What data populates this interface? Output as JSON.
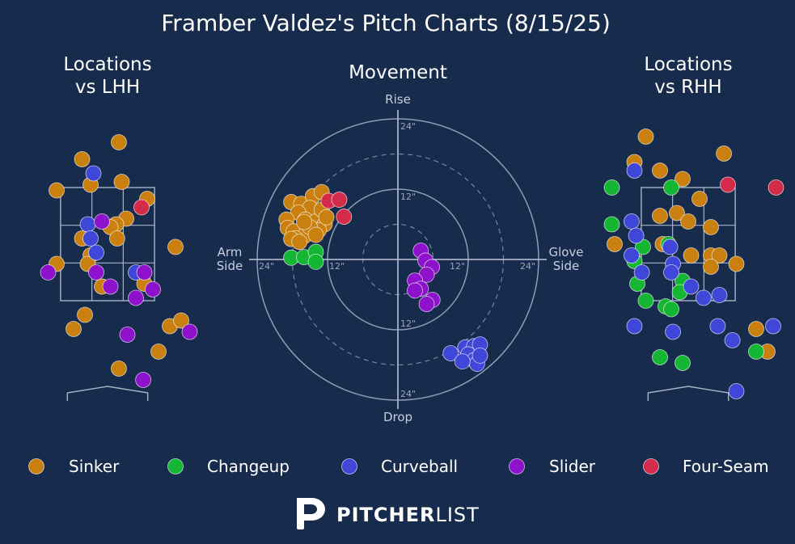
{
  "title": "Framber Valdez's Pitch Charts (8/15/25)",
  "panels": {
    "lhh_title": [
      "Locations",
      "vs LHH"
    ],
    "movement_title": "Movement",
    "rhh_title": [
      "Locations",
      "vs RHH"
    ]
  },
  "movement_axis_labels": {
    "top": "Rise",
    "bottom": "Drop",
    "left": [
      "Arm",
      "Side"
    ],
    "right": [
      "Glove",
      "Side"
    ]
  },
  "ring_labels": {
    "r12": "12\"",
    "r24": "24\""
  },
  "colors": {
    "background": "#172b4d",
    "Sinker": "#c9800f",
    "Changeup": "#14b634",
    "Curveball": "#3f47d8",
    "Slider": "#8e11cc",
    "Four-Seam": "#d42b4b"
  },
  "legend": [
    "Sinker",
    "Changeup",
    "Curveball",
    "Slider",
    "Four-Seam"
  ],
  "brand": {
    "bold": "PITCHER",
    "light": "LIST",
    "logo_icon": "pitcherlist-p-icon"
  },
  "chart_data": [
    {
      "type": "scatter",
      "name": "Locations vs LHH",
      "units": "feet (catcher view)",
      "xlim": [
        -2.5,
        2.5
      ],
      "ylim": [
        0,
        5
      ],
      "strike_zone": {
        "x": [
          -0.83,
          0.83
        ],
        "z": [
          1.5,
          3.5
        ]
      },
      "points": [
        {
          "pitch": "Sinker",
          "x": 0.2,
          "z": 4.3
        },
        {
          "pitch": "Sinker",
          "x": -0.45,
          "z": 4.0
        },
        {
          "pitch": "Sinker",
          "x": 0.25,
          "z": 3.6
        },
        {
          "pitch": "Sinker",
          "x": -0.3,
          "z": 3.55
        },
        {
          "pitch": "Sinker",
          "x": -0.9,
          "z": 3.45
        },
        {
          "pitch": "Sinker",
          "x": 0.7,
          "z": 3.3
        },
        {
          "pitch": "Sinker",
          "x": 0.33,
          "z": 2.95
        },
        {
          "pitch": "Sinker",
          "x": 0.15,
          "z": 2.85
        },
        {
          "pitch": "Sinker",
          "x": 0.05,
          "z": 2.8
        },
        {
          "pitch": "Sinker",
          "x": -0.45,
          "z": 2.6
        },
        {
          "pitch": "Sinker",
          "x": 0.17,
          "z": 2.6
        },
        {
          "pitch": "Sinker",
          "x": -0.3,
          "z": 2.3
        },
        {
          "pitch": "Sinker",
          "x": -0.9,
          "z": 2.15
        },
        {
          "pitch": "Sinker",
          "x": -0.35,
          "z": 2.15
        },
        {
          "pitch": "Sinker",
          "x": 1.2,
          "z": 2.45
        },
        {
          "pitch": "Sinker",
          "x": -0.1,
          "z": 1.75
        },
        {
          "pitch": "Sinker",
          "x": 0.65,
          "z": 1.8
        },
        {
          "pitch": "Sinker",
          "x": -0.4,
          "z": 1.25
        },
        {
          "pitch": "Sinker",
          "x": -0.6,
          "z": 1.0
        },
        {
          "pitch": "Sinker",
          "x": 1.1,
          "z": 1.05
        },
        {
          "pitch": "Sinker",
          "x": 1.3,
          "z": 1.15
        },
        {
          "pitch": "Sinker",
          "x": 0.9,
          "z": 0.6
        },
        {
          "pitch": "Sinker",
          "x": 0.2,
          "z": 0.3
        },
        {
          "pitch": "Curveball",
          "x": -0.25,
          "z": 3.75
        },
        {
          "pitch": "Curveball",
          "x": -0.35,
          "z": 2.85
        },
        {
          "pitch": "Curveball",
          "x": -0.3,
          "z": 2.6
        },
        {
          "pitch": "Curveball",
          "x": -0.2,
          "z": 2.35
        },
        {
          "pitch": "Curveball",
          "x": 0.5,
          "z": 2.0
        },
        {
          "pitch": "Slider",
          "x": -0.1,
          "z": 2.9
        },
        {
          "pitch": "Slider",
          "x": 0.65,
          "z": 2.0
        },
        {
          "pitch": "Slider",
          "x": -0.2,
          "z": 2.0
        },
        {
          "pitch": "Slider",
          "x": -1.05,
          "z": 2.0
        },
        {
          "pitch": "Slider",
          "x": 0.8,
          "z": 1.7
        },
        {
          "pitch": "Slider",
          "x": 0.05,
          "z": 1.75
        },
        {
          "pitch": "Slider",
          "x": 0.5,
          "z": 1.55
        },
        {
          "pitch": "Slider",
          "x": 0.35,
          "z": 0.9
        },
        {
          "pitch": "Slider",
          "x": 1.45,
          "z": 0.95
        },
        {
          "pitch": "Slider",
          "x": 0.63,
          "z": 0.1
        },
        {
          "pitch": "Four-Seam",
          "x": 0.6,
          "z": 3.15
        }
      ]
    },
    {
      "type": "scatter",
      "name": "Movement",
      "units": "inches",
      "axes": [
        "Arm Side / Glove Side",
        "Rise / Drop"
      ],
      "rings": [
        6,
        12,
        18,
        24
      ],
      "xlim": [
        -24,
        24
      ],
      "ylim": [
        -24,
        24
      ],
      "points": [
        {
          "pitch": "Sinker",
          "x": -18.2,
          "y": 9.8
        },
        {
          "pitch": "Sinker",
          "x": -16.5,
          "y": 9.5
        },
        {
          "pitch": "Sinker",
          "x": -14.5,
          "y": 10.8
        },
        {
          "pitch": "Sinker",
          "x": -13.0,
          "y": 11.5
        },
        {
          "pitch": "Sinker",
          "x": -15.0,
          "y": 8.8
        },
        {
          "pitch": "Sinker",
          "x": -17.0,
          "y": 8.0
        },
        {
          "pitch": "Sinker",
          "x": -19.0,
          "y": 6.8
        },
        {
          "pitch": "Sinker",
          "x": -18.8,
          "y": 5.4
        },
        {
          "pitch": "Sinker",
          "x": -17.8,
          "y": 4.8
        },
        {
          "pitch": "Sinker",
          "x": -15.8,
          "y": 6.8
        },
        {
          "pitch": "Sinker",
          "x": -14.0,
          "y": 6.5
        },
        {
          "pitch": "Sinker",
          "x": -13.0,
          "y": 8.5
        },
        {
          "pitch": "Sinker",
          "x": -12.5,
          "y": 6.0
        },
        {
          "pitch": "Sinker",
          "x": -13.5,
          "y": 5.0
        },
        {
          "pitch": "Sinker",
          "x": -16.0,
          "y": 4.0
        },
        {
          "pitch": "Sinker",
          "x": -17.5,
          "y": 3.6
        },
        {
          "pitch": "Sinker",
          "x": -18.2,
          "y": 3.5
        },
        {
          "pitch": "Sinker",
          "x": -16.8,
          "y": 3.0
        },
        {
          "pitch": "Sinker",
          "x": -15.0,
          "y": 5.5
        },
        {
          "pitch": "Sinker",
          "x": -16.0,
          "y": 6.4
        },
        {
          "pitch": "Sinker",
          "x": -12.2,
          "y": 7.2
        },
        {
          "pitch": "Sinker",
          "x": -14.0,
          "y": 4.2
        },
        {
          "pitch": "Changeup",
          "x": -18.2,
          "y": 0.3
        },
        {
          "pitch": "Changeup",
          "x": -16.0,
          "y": 0.4
        },
        {
          "pitch": "Changeup",
          "x": -14.0,
          "y": 1.3
        },
        {
          "pitch": "Changeup",
          "x": -14.0,
          "y": -0.4
        },
        {
          "pitch": "Curveball",
          "x": 9.0,
          "y": -16.0
        },
        {
          "pitch": "Curveball",
          "x": 11.5,
          "y": -15.0
        },
        {
          "pitch": "Curveball",
          "x": 13.0,
          "y": -14.8
        },
        {
          "pitch": "Curveball",
          "x": 14.0,
          "y": -14.5
        },
        {
          "pitch": "Curveball",
          "x": 12.0,
          "y": -16.2
        },
        {
          "pitch": "Curveball",
          "x": 13.0,
          "y": -17.2
        },
        {
          "pitch": "Curveball",
          "x": 13.5,
          "y": -17.8
        },
        {
          "pitch": "Curveball",
          "x": 11.0,
          "y": -17.4
        },
        {
          "pitch": "Curveball",
          "x": 14.0,
          "y": -16.4
        },
        {
          "pitch": "Slider",
          "x": 3.9,
          "y": 1.5
        },
        {
          "pitch": "Slider",
          "x": 4.7,
          "y": -0.2
        },
        {
          "pitch": "Slider",
          "x": 5.8,
          "y": -1.3
        },
        {
          "pitch": "Slider",
          "x": 4.9,
          "y": -2.6
        },
        {
          "pitch": "Slider",
          "x": 2.9,
          "y": -3.6
        },
        {
          "pitch": "Slider",
          "x": 3.9,
          "y": -5.0
        },
        {
          "pitch": "Slider",
          "x": 2.9,
          "y": -5.3
        },
        {
          "pitch": "Slider",
          "x": 5.9,
          "y": -6.9
        },
        {
          "pitch": "Slider",
          "x": 4.9,
          "y": -7.6
        },
        {
          "pitch": "Four-Seam",
          "x": -11.8,
          "y": 10.0
        },
        {
          "pitch": "Four-Seam",
          "x": -10.0,
          "y": 10.2
        },
        {
          "pitch": "Four-Seam",
          "x": -9.2,
          "y": 7.3
        }
      ]
    },
    {
      "type": "scatter",
      "name": "Locations vs RHH",
      "units": "feet (catcher view)",
      "xlim": [
        -2.5,
        2.5
      ],
      "ylim": [
        0,
        5
      ],
      "strike_zone": {
        "x": [
          -0.83,
          0.83
        ],
        "z": [
          1.5,
          3.5
        ]
      },
      "points": [
        {
          "pitch": "Sinker",
          "x": -0.75,
          "z": 4.4
        },
        {
          "pitch": "Sinker",
          "x": -0.95,
          "z": 3.95
        },
        {
          "pitch": "Sinker",
          "x": -0.5,
          "z": 3.8
        },
        {
          "pitch": "Sinker",
          "x": -0.1,
          "z": 3.65
        },
        {
          "pitch": "Sinker",
          "x": 0.63,
          "z": 4.1
        },
        {
          "pitch": "Sinker",
          "x": 0.2,
          "z": 3.3
        },
        {
          "pitch": "Sinker",
          "x": -0.2,
          "z": 3.05
        },
        {
          "pitch": "Sinker",
          "x": -0.5,
          "z": 3.0
        },
        {
          "pitch": "Sinker",
          "x": 0.0,
          "z": 2.9
        },
        {
          "pitch": "Sinker",
          "x": 0.4,
          "z": 2.8
        },
        {
          "pitch": "Sinker",
          "x": -1.3,
          "z": 2.5
        },
        {
          "pitch": "Sinker",
          "x": -0.45,
          "z": 2.5
        },
        {
          "pitch": "Sinker",
          "x": 0.05,
          "z": 2.3
        },
        {
          "pitch": "Sinker",
          "x": 0.4,
          "z": 2.3
        },
        {
          "pitch": "Sinker",
          "x": 0.55,
          "z": 2.3
        },
        {
          "pitch": "Sinker",
          "x": 0.4,
          "z": 2.1
        },
        {
          "pitch": "Sinker",
          "x": 0.85,
          "z": 2.15
        },
        {
          "pitch": "Sinker",
          "x": 1.2,
          "z": 1.0
        },
        {
          "pitch": "Sinker",
          "x": 1.4,
          "z": 0.6
        },
        {
          "pitch": "Changeup",
          "x": -1.35,
          "z": 3.5
        },
        {
          "pitch": "Changeup",
          "x": -0.3,
          "z": 3.5
        },
        {
          "pitch": "Changeup",
          "x": -1.35,
          "z": 2.85
        },
        {
          "pitch": "Changeup",
          "x": -0.8,
          "z": 2.45
        },
        {
          "pitch": "Changeup",
          "x": -0.35,
          "z": 2.5
        },
        {
          "pitch": "Changeup",
          "x": -0.95,
          "z": 2.2
        },
        {
          "pitch": "Changeup",
          "x": -0.9,
          "z": 1.8
        },
        {
          "pitch": "Changeup",
          "x": -0.1,
          "z": 1.85
        },
        {
          "pitch": "Changeup",
          "x": -0.15,
          "z": 1.65
        },
        {
          "pitch": "Changeup",
          "x": -0.75,
          "z": 1.5
        },
        {
          "pitch": "Changeup",
          "x": -0.4,
          "z": 1.4
        },
        {
          "pitch": "Changeup",
          "x": -0.3,
          "z": 1.35
        },
        {
          "pitch": "Changeup",
          "x": -0.5,
          "z": 0.5
        },
        {
          "pitch": "Changeup",
          "x": -0.1,
          "z": 0.4
        },
        {
          "pitch": "Changeup",
          "x": 1.2,
          "z": 0.6
        },
        {
          "pitch": "Curveball",
          "x": -0.95,
          "z": 3.8
        },
        {
          "pitch": "Curveball",
          "x": -1.0,
          "z": 2.9
        },
        {
          "pitch": "Curveball",
          "x": -0.92,
          "z": 2.65
        },
        {
          "pitch": "Curveball",
          "x": -1.0,
          "z": 2.3
        },
        {
          "pitch": "Curveball",
          "x": -0.82,
          "z": 2.0
        },
        {
          "pitch": "Curveball",
          "x": -0.32,
          "z": 2.45
        },
        {
          "pitch": "Curveball",
          "x": -0.27,
          "z": 2.15
        },
        {
          "pitch": "Curveball",
          "x": -0.3,
          "z": 2.0
        },
        {
          "pitch": "Curveball",
          "x": 0.05,
          "z": 1.75
        },
        {
          "pitch": "Curveball",
          "x": 0.27,
          "z": 1.55
        },
        {
          "pitch": "Curveball",
          "x": 0.55,
          "z": 1.6
        },
        {
          "pitch": "Curveball",
          "x": -0.95,
          "z": 1.05
        },
        {
          "pitch": "Curveball",
          "x": -0.27,
          "z": 0.95
        },
        {
          "pitch": "Curveball",
          "x": 0.52,
          "z": 1.05
        },
        {
          "pitch": "Curveball",
          "x": 0.78,
          "z": 0.8
        },
        {
          "pitch": "Curveball",
          "x": 1.5,
          "z": 1.05
        },
        {
          "pitch": "Curveball",
          "x": 0.85,
          "z": -0.1
        },
        {
          "pitch": "Four-Seam",
          "x": 0.7,
          "z": 3.55
        },
        {
          "pitch": "Four-Seam",
          "x": 1.55,
          "z": 3.5
        }
      ]
    }
  ]
}
